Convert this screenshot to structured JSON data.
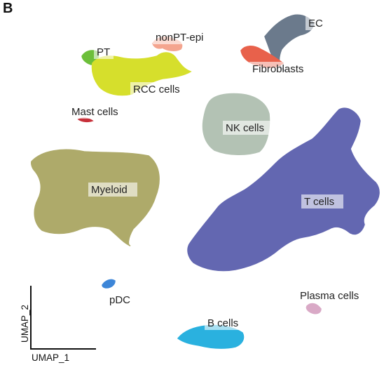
{
  "panel_letter": "B",
  "chart_data": {
    "type": "scatter",
    "title": "",
    "xlabel": "UMAP_1",
    "ylabel": "UMAP_2",
    "grid": false,
    "legend": "none (clusters labeled in-plot)",
    "series": [
      {
        "name": "EC",
        "color": "#6b7a8c"
      },
      {
        "name": "nonPT-epi",
        "color": "#f4a58f"
      },
      {
        "name": "Fibroblasts",
        "color": "#e8614b"
      },
      {
        "name": "PT",
        "color": "#6cbf3a"
      },
      {
        "name": "RCC cells",
        "color": "#d6df2c"
      },
      {
        "name": "Mast cells",
        "color": "#c7303a"
      },
      {
        "name": "NK cells",
        "color": "#b3c2b4"
      },
      {
        "name": "Myeloid",
        "color": "#aeaa6a"
      },
      {
        "name": "T cells",
        "color": "#6367b1"
      },
      {
        "name": "pDC",
        "color": "#3d86d8"
      },
      {
        "name": "Plasma cells",
        "color": "#d9a9c6"
      },
      {
        "name": "B cells",
        "color": "#2ab1df"
      }
    ]
  }
}
